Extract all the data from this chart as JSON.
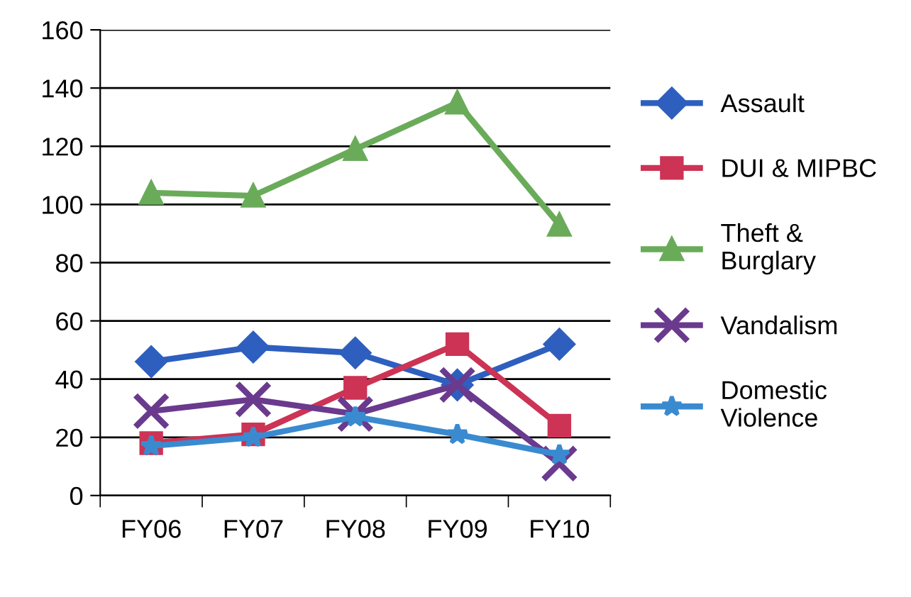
{
  "chart_data": {
    "type": "line",
    "categories": [
      "FY06",
      "FY07",
      "FY08",
      "FY09",
      "FY10"
    ],
    "series": [
      {
        "name": "Assault",
        "color": "#2e5fbf",
        "marker": "diamond",
        "values": [
          46,
          51,
          49,
          38,
          52
        ]
      },
      {
        "name": "DUI & MIPBC",
        "color": "#cc3355",
        "marker": "square",
        "values": [
          18,
          21,
          37,
          52,
          24
        ]
      },
      {
        "name": "Theft &\nBurglary",
        "color": "#6aab5a",
        "marker": "triangle",
        "values": [
          104,
          103,
          119,
          135,
          93
        ]
      },
      {
        "name": "Vandalism",
        "color": "#6a3a8e",
        "marker": "cross",
        "values": [
          29,
          33,
          28,
          38,
          11
        ]
      },
      {
        "name": "Domestic\nViolence",
        "color": "#3a8ad0",
        "marker": "star",
        "values": [
          17,
          20,
          27,
          21,
          14
        ]
      }
    ],
    "ylim": [
      0,
      160
    ],
    "yticks": [
      0,
      20,
      40,
      60,
      80,
      100,
      120,
      140,
      160
    ],
    "grid": "y",
    "legend": "right",
    "line_style": "solid"
  }
}
